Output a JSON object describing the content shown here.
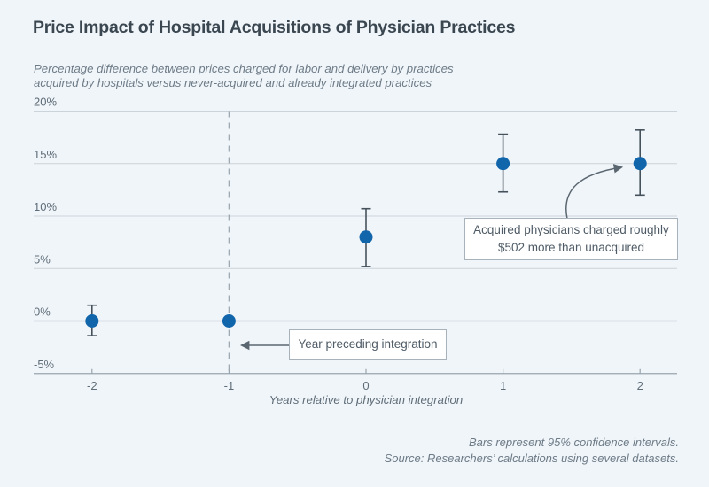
{
  "header": {
    "title": "Price Impact of Hospital Acquisitions of Physician Practices",
    "subtitle_line1": "Percentage difference between prices charged for labor and delivery by practices",
    "subtitle_line2": "acquired by hospitals versus never-acquired and already integrated practices"
  },
  "chart_data": {
    "type": "scatter",
    "x": [
      -2,
      -1,
      0,
      1,
      2
    ],
    "values": [
      0,
      0,
      8,
      15,
      15
    ],
    "ci_low": [
      -1.4,
      null,
      5.2,
      12.3,
      12.0
    ],
    "ci_high": [
      1.5,
      null,
      10.7,
      17.8,
      18.2
    ],
    "x_tick_labels": [
      "-2",
      "-1",
      "0",
      "1",
      "2"
    ],
    "y_ticks": [
      20,
      15,
      10,
      5,
      0,
      -5
    ],
    "y_tick_labels": [
      "20%",
      "15%",
      "10%",
      "5%",
      "0%",
      "-5%"
    ],
    "ylim": [
      -5,
      20
    ],
    "xlabel": "Years relative to physician integration",
    "grid": "horizontal",
    "reference_line_x": -1,
    "legend": "none",
    "colors": {
      "point": "#1165ab",
      "error_bar": "#45525c",
      "gridline_light": "#cbd4da",
      "gridline_dark": "#99a5ae",
      "dashed_line": "#9ea9b2",
      "arrow": "#5a6670"
    }
  },
  "annotations": {
    "note_502_line1": "Acquired physicians charged roughly",
    "note_502_line2": "$502 more than unacquired",
    "note_year": "Year preceding integration"
  },
  "footer": {
    "line1": "Bars represent 95% confidence intervals.",
    "line2": "Source: Researchers’ calculations using several datasets."
  }
}
